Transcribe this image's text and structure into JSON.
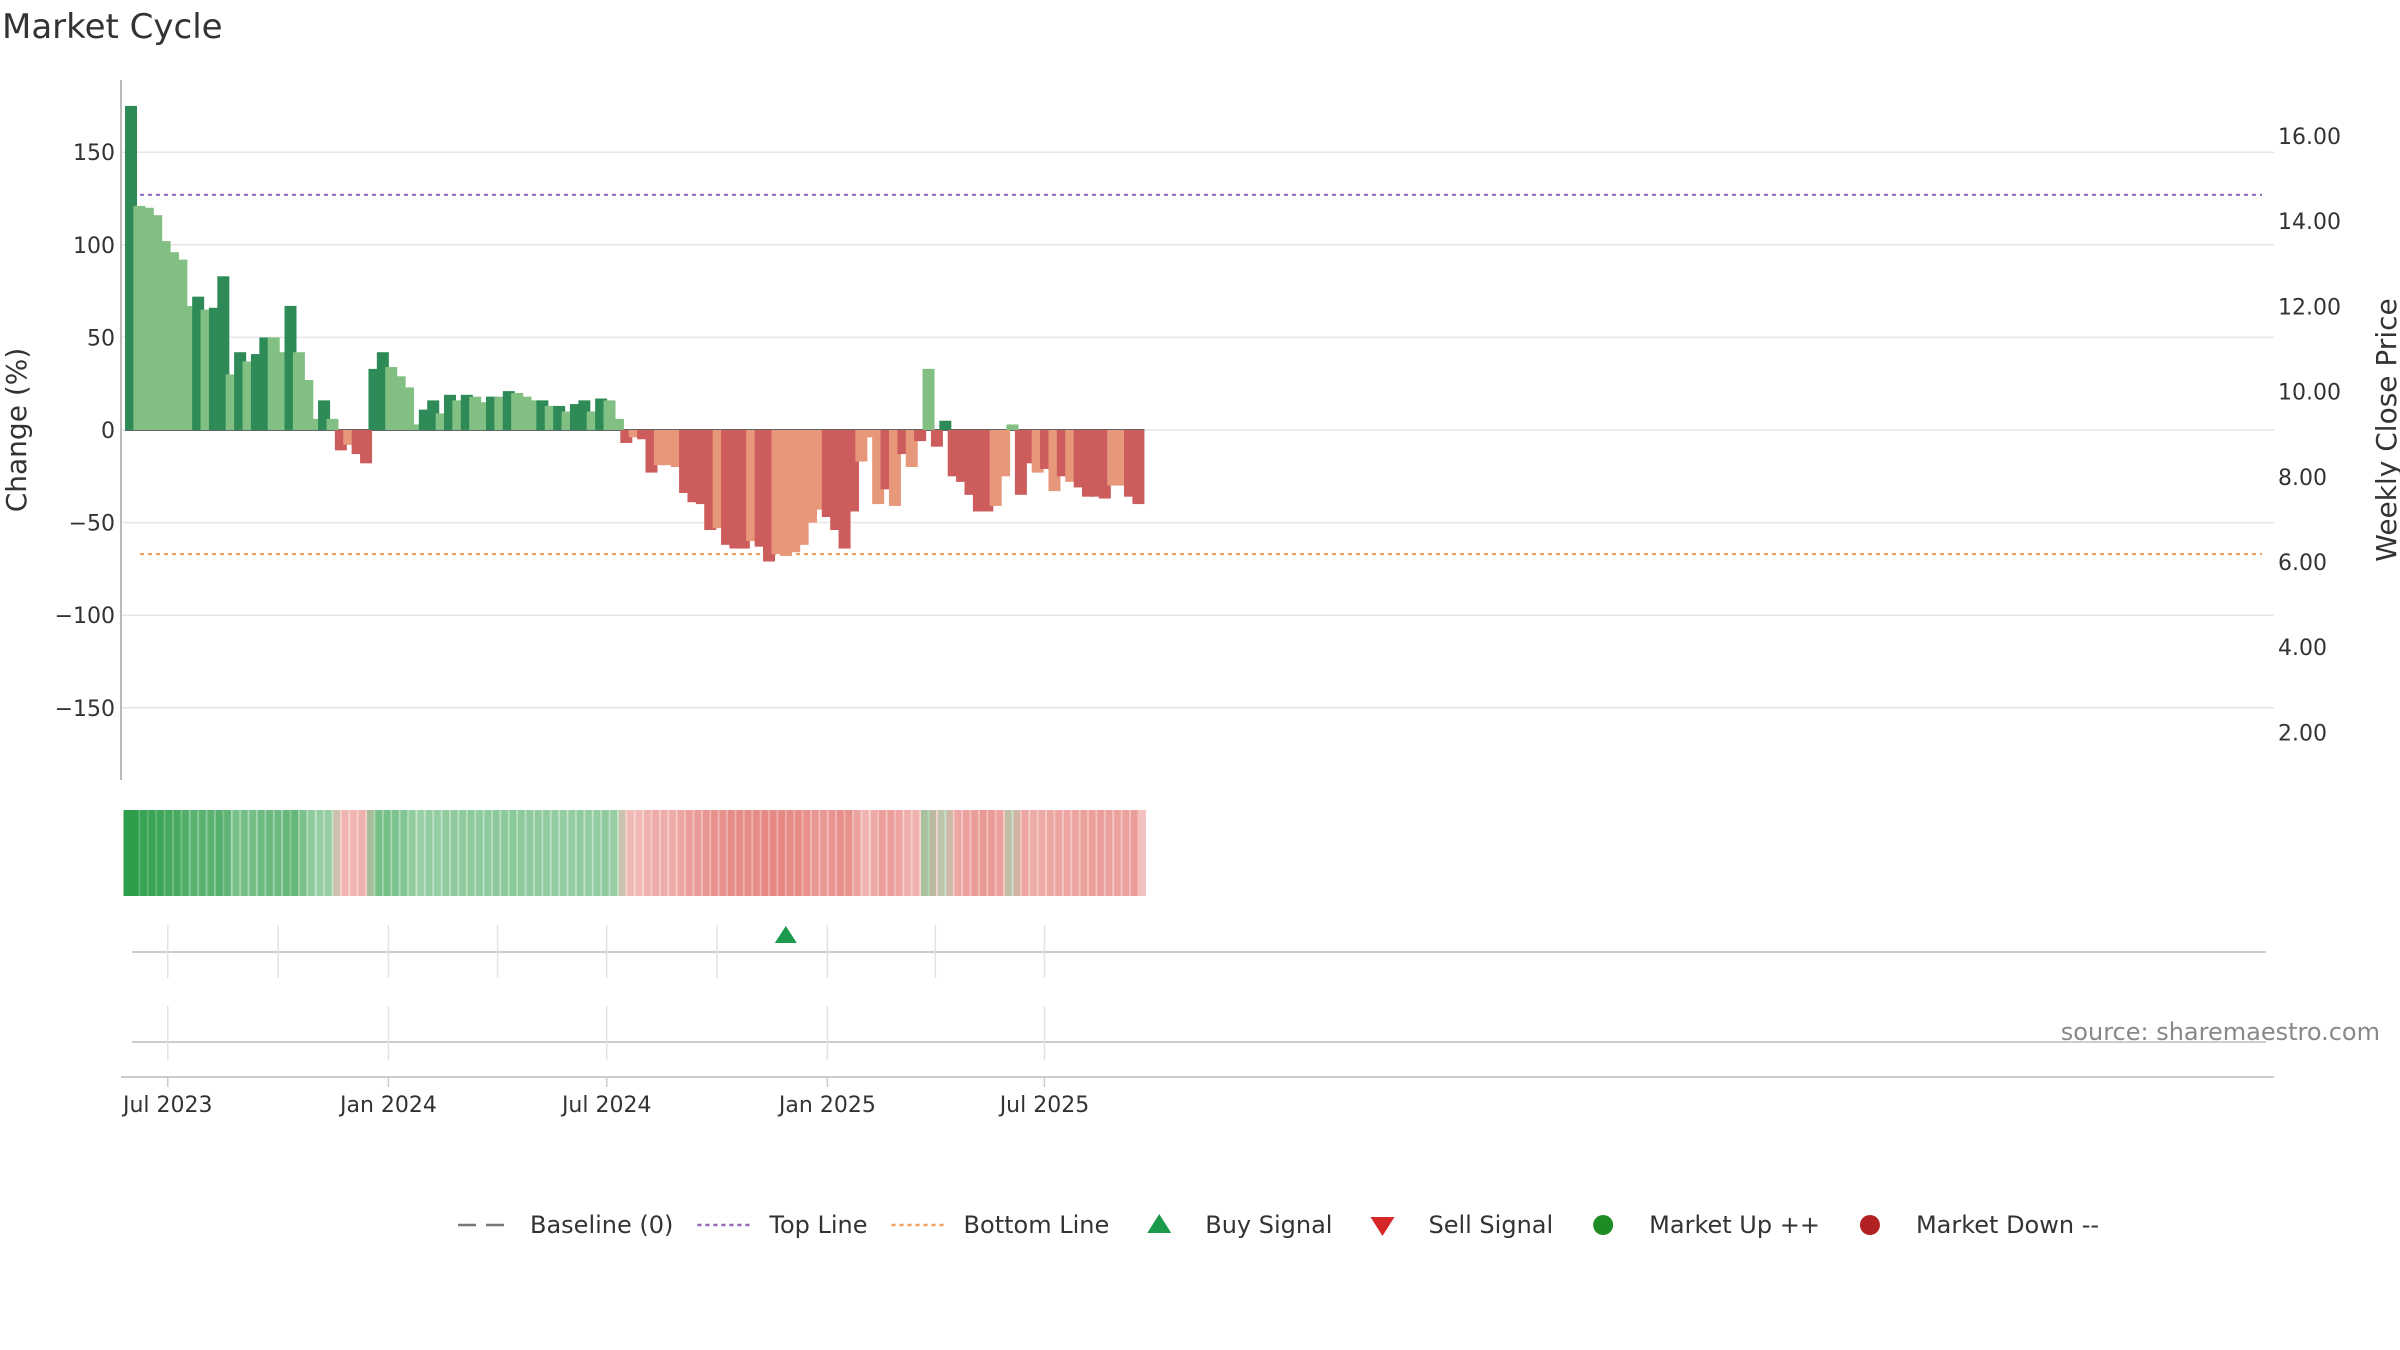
{
  "chart_data": {
    "type": "bar",
    "title": "Market Cycle",
    "ylabel": "Change (%)",
    "y2label": "Weekly Close Price",
    "ylim": [
      -190,
      190
    ],
    "y_ticks": [
      150,
      100,
      50,
      0,
      -50,
      -100,
      -150
    ],
    "y_tick_labels": [
      "150",
      "100",
      "50",
      "0",
      "−50",
      "−100",
      "−150"
    ],
    "y2lim": [
      1.0,
      17.5
    ],
    "y2_ticks": [
      16,
      14,
      12,
      10,
      8,
      6,
      4,
      2
    ],
    "y2_tick_labels": [
      "16.00",
      "14.00",
      "12.00",
      "10.00",
      "8.00",
      "6.00",
      "4.00",
      "2.00"
    ],
    "x_start": "2023-05-29",
    "x_range": [
      "2023-05-23",
      "2025-10-03"
    ],
    "x_ticks": [
      "2023-07-01",
      "2024-01-01",
      "2024-07-01",
      "2025-01-01",
      "2025-07-01"
    ],
    "x_tick_labels": [
      "Jul 2023",
      "Jan 2024",
      "Jul 2024",
      "Jan 2025",
      "Jul 2025"
    ],
    "x_minor_ticks": [
      "2023-10-01",
      "2024-04-01",
      "2024-10-01",
      "2025-04-01"
    ],
    "grid": true,
    "legend_placement": "bottom",
    "top_line": 127,
    "bottom_line": -67,
    "values": [
      175,
      121,
      120,
      116,
      102,
      96,
      92,
      67,
      72,
      65,
      66,
      83,
      30,
      42,
      37,
      41,
      50,
      50,
      42,
      67,
      42,
      27,
      6,
      16,
      6,
      -11,
      -8,
      -13,
      -18,
      33,
      42,
      34,
      29,
      23,
      3,
      11,
      16,
      9,
      19,
      16,
      19,
      18,
      15,
      18,
      18,
      21,
      20,
      18,
      16,
      16,
      13,
      13,
      10,
      14,
      16,
      10,
      17,
      16,
      6,
      -7,
      -4,
      -5,
      -23,
      -19,
      -19,
      -20,
      -34,
      -39,
      -40,
      -54,
      -53,
      -62,
      -64,
      -64,
      -60,
      -63,
      -71,
      -67,
      -68,
      -66,
      -62,
      -50,
      -43,
      -47,
      -54,
      -64,
      -44,
      -17,
      -4,
      -40,
      -32,
      -41,
      -13,
      -20,
      -6,
      33,
      -9,
      5,
      -25,
      -28,
      -35,
      -44,
      -44,
      -41,
      -25,
      3,
      -35,
      -18,
      -23,
      -21,
      -33,
      -25,
      -28,
      -31,
      -36,
      -36,
      -37,
      -30,
      -30,
      -36,
      -40
    ],
    "bar_colors": {
      "strong_up": "#2e8b57",
      "up": "#82bf82",
      "down": "#e8987a",
      "strong_down": "#cd5c5c"
    },
    "bar_strength": [
      1,
      0,
      0,
      0,
      0,
      0,
      0,
      0,
      1,
      0,
      1,
      1,
      0,
      1,
      0,
      1,
      1,
      0,
      0,
      1,
      0,
      0,
      0,
      1,
      0,
      1,
      0,
      1,
      1,
      1,
      1,
      0,
      0,
      0,
      0,
      1,
      1,
      0,
      1,
      0,
      1,
      0,
      0,
      1,
      0,
      1,
      0,
      0,
      0,
      1,
      0,
      1,
      0,
      1,
      1,
      0,
      1,
      0,
      0,
      1,
      0,
      1,
      1,
      0,
      0,
      0,
      1,
      1,
      1,
      1,
      0,
      1,
      1,
      1,
      0,
      1,
      1,
      0,
      0,
      0,
      0,
      0,
      0,
      1,
      1,
      1,
      1,
      0,
      0,
      0,
      1,
      0,
      1,
      0,
      1,
      0,
      1,
      1,
      1,
      1,
      1,
      1,
      1,
      0,
      0,
      0,
      1,
      1,
      0,
      1,
      0,
      1,
      0,
      1,
      1,
      1,
      1,
      0,
      0,
      1,
      1
    ],
    "heat_strip_colors": {
      "up": "#2e9e4a",
      "down": "#e06a64"
    },
    "buy_signals": [
      "2024-11-25"
    ],
    "sell_signals": [],
    "market_up_markers": [],
    "market_down_markers": [],
    "legend": [
      {
        "label": "Baseline (0)",
        "symbol": "dashline",
        "color": "#777777"
      },
      {
        "label": "Top Line",
        "symbol": "dotline",
        "color": "#9467bd"
      },
      {
        "label": "Bottom Line",
        "symbol": "dotline",
        "color": "#f4a261"
      },
      {
        "label": "Buy Signal",
        "symbol": "triangle-up",
        "color": "#1a9a4a"
      },
      {
        "label": "Sell Signal",
        "symbol": "triangle-down",
        "color": "#d62728"
      },
      {
        "label": "Market Up ++",
        "symbol": "circle",
        "color": "#1f8b24"
      },
      {
        "label": "Market Down --",
        "symbol": "circle",
        "color": "#b22222"
      }
    ],
    "source_note": "source: sharemaestro.com"
  }
}
